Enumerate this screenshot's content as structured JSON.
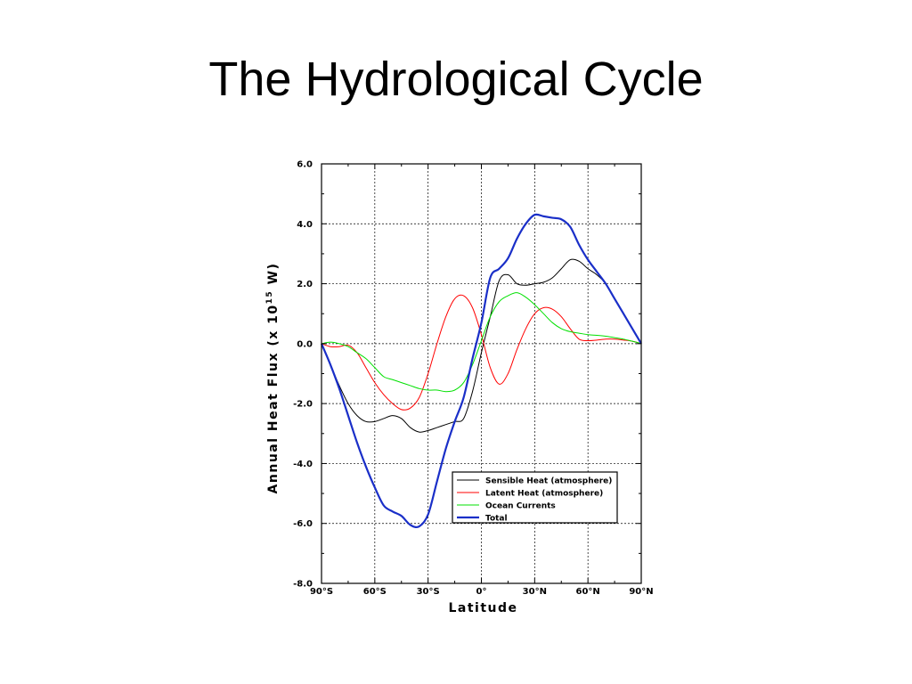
{
  "slide": {
    "title": "The Hydrological Cycle"
  },
  "chart_data": {
    "type": "line",
    "title": "",
    "xlabel": "Latitude",
    "ylabel_prefix": "Annual Heat Flux (x 10",
    "ylabel_exponent": "15",
    "ylabel_suffix": " W)",
    "xlim": [
      -90,
      90
    ],
    "ylim": [
      -8,
      6
    ],
    "grid": true,
    "legend_position": "lower-right",
    "x_ticks": [
      {
        "value": -90,
        "label": "90°S"
      },
      {
        "value": -60,
        "label": "60°S"
      },
      {
        "value": -30,
        "label": "30°S"
      },
      {
        "value": 0,
        "label": "0°"
      },
      {
        "value": 30,
        "label": "30°N"
      },
      {
        "value": 60,
        "label": "60°N"
      },
      {
        "value": 90,
        "label": "90°N"
      }
    ],
    "y_ticks": [
      {
        "value": 6,
        "label": "6.0"
      },
      {
        "value": 4,
        "label": "4.0"
      },
      {
        "value": 2,
        "label": "2.0"
      },
      {
        "value": 0,
        "label": "0.0"
      },
      {
        "value": -2,
        "label": "-2.0"
      },
      {
        "value": -4,
        "label": "-4.0"
      },
      {
        "value": -6,
        "label": "-6.0"
      },
      {
        "value": -8,
        "label": "-8.0"
      }
    ],
    "series": [
      {
        "name": "Sensible Heat (atmosphere)",
        "color": "#000000",
        "width": 1,
        "x": [
          -90,
          -85,
          -80,
          -75,
          -70,
          -65,
          -60,
          -55,
          -50,
          -45,
          -40,
          -35,
          -30,
          -25,
          -20,
          -15,
          -10,
          -5,
          0,
          5,
          10,
          15,
          20,
          25,
          30,
          35,
          40,
          45,
          50,
          55,
          60,
          65,
          70,
          75,
          80,
          85,
          90
        ],
        "y": [
          0.0,
          -0.7,
          -1.4,
          -2.0,
          -2.4,
          -2.6,
          -2.6,
          -2.5,
          -2.4,
          -2.5,
          -2.8,
          -2.95,
          -2.9,
          -2.8,
          -2.7,
          -2.6,
          -2.5,
          -1.6,
          -0.3,
          0.9,
          2.1,
          2.3,
          2.0,
          1.95,
          2.0,
          2.05,
          2.2,
          2.5,
          2.8,
          2.75,
          2.5,
          2.3,
          2.0,
          1.5,
          1.0,
          0.5,
          0.0
        ]
      },
      {
        "name": "Latent Heat (atmosphere)",
        "color": "#ff0000",
        "width": 1,
        "x": [
          -90,
          -85,
          -80,
          -75,
          -70,
          -65,
          -60,
          -55,
          -50,
          -45,
          -40,
          -35,
          -30,
          -25,
          -20,
          -15,
          -10,
          -5,
          0,
          5,
          10,
          15,
          20,
          25,
          30,
          35,
          40,
          45,
          50,
          55,
          60,
          65,
          70,
          75,
          80,
          85,
          90
        ],
        "y": [
          0.0,
          -0.1,
          -0.1,
          -0.05,
          -0.3,
          -0.8,
          -1.3,
          -1.7,
          -2.0,
          -2.2,
          -2.15,
          -1.8,
          -1.0,
          0.0,
          0.9,
          1.5,
          1.6,
          1.2,
          0.3,
          -0.8,
          -1.35,
          -1.0,
          -0.2,
          0.5,
          1.0,
          1.2,
          1.15,
          0.9,
          0.5,
          0.15,
          0.1,
          0.12,
          0.15,
          0.15,
          0.12,
          0.08,
          0.0
        ]
      },
      {
        "name": "Ocean Currents",
        "color": "#00e000",
        "width": 1,
        "x": [
          -90,
          -85,
          -80,
          -75,
          -70,
          -65,
          -60,
          -55,
          -50,
          -45,
          -40,
          -35,
          -30,
          -25,
          -20,
          -15,
          -10,
          -5,
          0,
          5,
          10,
          15,
          20,
          25,
          30,
          35,
          40,
          45,
          50,
          55,
          60,
          65,
          70,
          75,
          80,
          85,
          90
        ],
        "y": [
          0.0,
          0.05,
          0.0,
          -0.1,
          -0.3,
          -0.5,
          -0.8,
          -1.1,
          -1.2,
          -1.3,
          -1.4,
          -1.5,
          -1.55,
          -1.55,
          -1.6,
          -1.55,
          -1.3,
          -0.7,
          0.1,
          0.9,
          1.4,
          1.6,
          1.7,
          1.55,
          1.3,
          1.0,
          0.7,
          0.5,
          0.4,
          0.35,
          0.3,
          0.28,
          0.25,
          0.2,
          0.15,
          0.08,
          0.0
        ]
      },
      {
        "name": "Total",
        "color": "#1a2fc8",
        "width": 2.2,
        "x": [
          -90,
          -85,
          -80,
          -75,
          -70,
          -65,
          -60,
          -55,
          -50,
          -45,
          -40,
          -35,
          -30,
          -25,
          -20,
          -15,
          -10,
          -5,
          0,
          5,
          10,
          15,
          20,
          25,
          30,
          35,
          40,
          45,
          50,
          55,
          60,
          65,
          70,
          75,
          80,
          85,
          90
        ],
        "y": [
          0.0,
          -0.7,
          -1.5,
          -2.4,
          -3.3,
          -4.1,
          -4.8,
          -5.4,
          -5.6,
          -5.75,
          -6.05,
          -6.1,
          -5.7,
          -4.6,
          -3.5,
          -2.6,
          -1.8,
          -0.5,
          0.7,
          2.2,
          2.5,
          2.85,
          3.5,
          4.0,
          4.3,
          4.25,
          4.2,
          4.15,
          3.9,
          3.3,
          2.8,
          2.4,
          2.0,
          1.5,
          1.0,
          0.5,
          0.0
        ]
      }
    ]
  }
}
